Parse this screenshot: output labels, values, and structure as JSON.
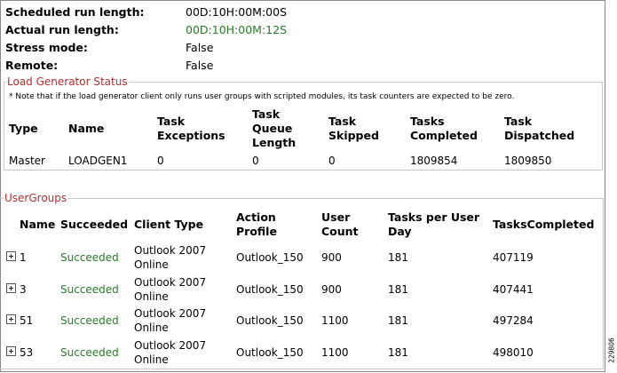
{
  "summary": [
    {
      "label": "Scheduled run length:",
      "value": "00D:10H:00M:00S",
      "highlight": false
    },
    {
      "label": "Actual run length:",
      "value": "00D:10H:00M:12S",
      "highlight": true
    },
    {
      "label": "Stress mode:",
      "value": "False",
      "highlight": false
    },
    {
      "label": "Remote:",
      "value": "False",
      "highlight": false
    }
  ],
  "load_generator": {
    "legend": "Load Generator Status",
    "note": "* Note that if the load generator client only runs user groups with scripted modules, its task counters are expected to be zero.",
    "headers": [
      "Type",
      "Name",
      "Task Exceptions",
      "Task Queue Length",
      "Task Skipped",
      "Tasks Completed",
      "Task Dispatched"
    ],
    "row": [
      "Master",
      "LOADGEN1",
      "0",
      "0",
      "0",
      "1809854",
      "1809850"
    ]
  },
  "user_groups": {
    "legend": "UserGroups",
    "headers": [
      "Name",
      "Succeeded",
      "Client Type",
      "Action Profile",
      "User Count",
      "Tasks per User Day",
      "TasksCompleted"
    ],
    "rows": [
      {
        "name": "1",
        "status": "Succeeded",
        "client_type": "Outlook 2007 Online",
        "profile": "Outlook_150",
        "user_count": "900",
        "tasks_per_day": "181",
        "completed": "407119"
      },
      {
        "name": "3",
        "status": "Succeeded",
        "client_type": "Outlook 2007 Online",
        "profile": "Outlook_150",
        "user_count": "900",
        "tasks_per_day": "181",
        "completed": "407441"
      },
      {
        "name": "51",
        "status": "Succeeded",
        "client_type": "Outlook 2007 Online",
        "profile": "Outlook_150",
        "user_count": "1100",
        "tasks_per_day": "181",
        "completed": "497284"
      },
      {
        "name": "53",
        "status": "Succeeded",
        "client_type": "Outlook 2007 Online",
        "profile": "Outlook_150",
        "user_count": "1100",
        "tasks_per_day": "181",
        "completed": "498010"
      }
    ]
  },
  "figure_id": "229806",
  "colors": {
    "success_text": "#2a7a2a",
    "legend_text": "#b03030",
    "border": "#8a8a8a"
  }
}
